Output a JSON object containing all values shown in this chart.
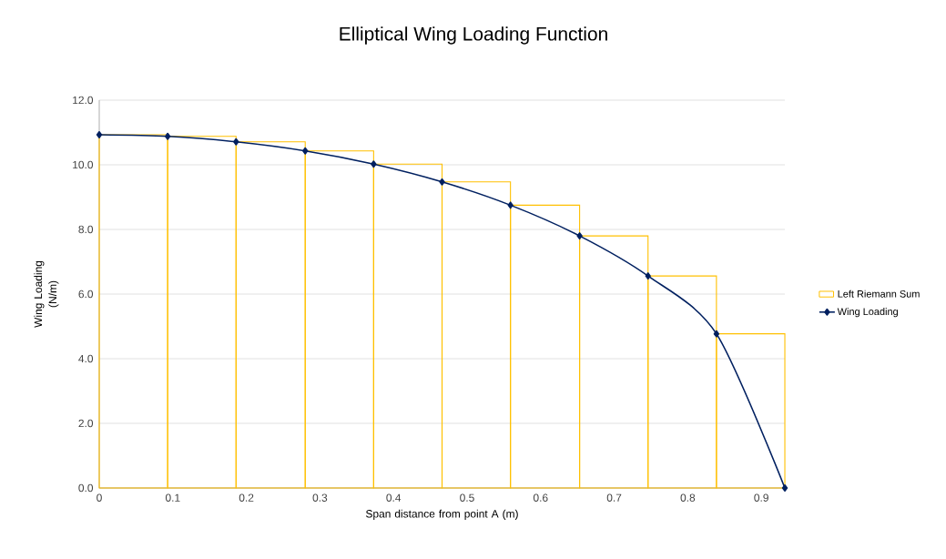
{
  "chart_data": {
    "type": "line",
    "title": "Elliptical Wing Loading Function",
    "xlabel": "Span distance from point A (m)",
    "ylabel": "Wing Loading (N/m)",
    "series": [
      {
        "name": "Left Riemann Sum",
        "type": "histogram",
        "color": "#ffc000",
        "bins": [
          0,
          0.093,
          0.186,
          0.28,
          0.373,
          0.466,
          0.559,
          0.653,
          0.746,
          0.839,
          0.932
        ],
        "values": [
          10.93,
          10.88,
          10.71,
          10.43,
          10.02,
          9.47,
          8.75,
          7.8,
          6.56,
          4.77
        ]
      },
      {
        "name": "Wing Loading",
        "color": "#002060",
        "marker": "diamond",
        "x": [
          0,
          0.093,
          0.186,
          0.28,
          0.373,
          0.466,
          0.559,
          0.653,
          0.746,
          0.839,
          0.932
        ],
        "values": [
          10.93,
          10.88,
          10.71,
          10.43,
          10.02,
          9.47,
          8.75,
          7.8,
          6.56,
          4.77,
          0
        ]
      }
    ],
    "xlim": [
      0,
      0.932
    ],
    "xticks": [
      0,
      0.1,
      0.2,
      0.3,
      0.4,
      0.5,
      0.6,
      0.7,
      0.8,
      0.9
    ],
    "ylim": [
      0,
      12
    ],
    "yticks": [
      {
        "value": 0,
        "label": "0.0"
      },
      {
        "value": 2,
        "label": "2.0"
      },
      {
        "value": 4,
        "label": "4.0"
      },
      {
        "value": 6,
        "label": "6.0"
      },
      {
        "value": 8,
        "label": "8.0"
      },
      {
        "value": 10,
        "label": "10.0"
      },
      {
        "value": 12,
        "label": "12.0"
      }
    ],
    "grid": "y",
    "legend": "right"
  }
}
